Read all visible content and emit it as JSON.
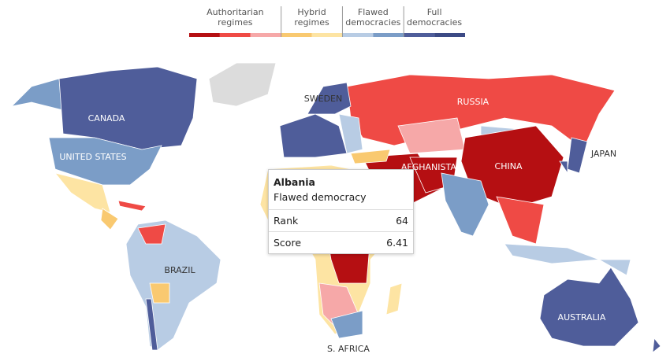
{
  "legend": {
    "groups": [
      {
        "label": [
          "Authoritarian",
          "regimes"
        ]
      },
      {
        "label": [
          "Hybrid",
          "regimes"
        ]
      },
      {
        "label": [
          "Flawed",
          "democracies"
        ]
      },
      {
        "label": [
          "Full",
          "democracies"
        ]
      }
    ],
    "colors": [
      "#b50f12",
      "#ef4a45",
      "#f6a8a8",
      "#f9c970",
      "#fde4a3",
      "#b8cce4",
      "#7b9dc7",
      "#4f5d9a",
      "#3c4a85"
    ]
  },
  "map_labels": [
    "CANADA",
    "UNITED STATES",
    "BRAZIL",
    "RUSSIA",
    "CHINA",
    "AFGHANISTAN",
    "JAPAN",
    "AUSTRALIA",
    "S. AFRICA",
    "SWEDEN"
  ],
  "tooltip": {
    "country": "Albania",
    "category": "Flawed democracy",
    "rows": [
      {
        "label": "Rank",
        "value": 64
      },
      {
        "label": "Score",
        "value": 6.41
      }
    ]
  }
}
